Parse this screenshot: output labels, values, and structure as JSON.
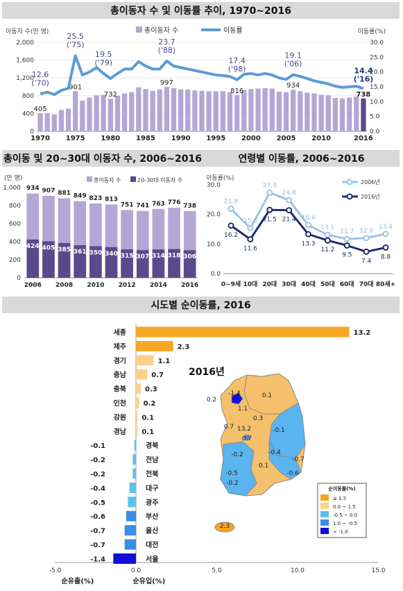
{
  "colors": {
    "banner": "#d9d9d9",
    "bar_light": "#b4a7d6",
    "bar_dark": "#5b4a8b",
    "line_blue": "#5b9bd5",
    "line_light": "#9dc3e6",
    "line_dark": "#1f2d6b",
    "pos_orange": "#f5a623",
    "pos_light": "#fcd28a",
    "neg_light": "#5bc0f0",
    "neg_mid": "#3b8de8",
    "neg_dark": "#1010d8"
  },
  "top": {
    "title": "총이동자 수 및 이동률 추이, 1970~2016",
    "left_axis_label": "이동자 수(만 명)",
    "right_axis_label": "이동률(%)",
    "legend_bar": "총이동자 수",
    "legend_line": "이동률"
  },
  "mid_left": {
    "title": "총이동 및 20~30대 이동자 수, 2006~2016",
    "unit": "(만 명)",
    "legend_total": "총이동자 수",
    "legend_2030": "20-30대 이동자 수"
  },
  "mid_right": {
    "title": "연령별 이동률, 2006~2016",
    "unit": "이동률(%)",
    "legend_2006": "2006년",
    "legend_2016": "2016년"
  },
  "bottom": {
    "title": "시도별 순이동률, 2016",
    "xlabel_out": "순유출(%)",
    "xlabel_in": "순유입(%)",
    "map_title": "2016년",
    "map_legend_title": "순이동률(%)",
    "map_legend_items": [
      "≥ 1.5",
      "0.0 ~ 1.5",
      "-0.5 ~ 0.0",
      "1.0 ~ -0.5",
      "< -1.0"
    ],
    "map_labels": [
      {
        "text": "-1.4"
      },
      {
        "text": "0.2"
      },
      {
        "text": "1.1"
      },
      {
        "text": "0.1"
      },
      {
        "text": "0.3"
      },
      {
        "text": "0.7"
      },
      {
        "text": "13.2"
      },
      {
        "text": "0.7"
      },
      {
        "text": "-0.1"
      },
      {
        "text": "-0.2"
      },
      {
        "text": "-0.4"
      },
      {
        "text": "-0.7"
      },
      {
        "text": "0.1"
      },
      {
        "text": "-0.5"
      },
      {
        "text": "-0.6"
      },
      {
        "text": "-0.2"
      },
      {
        "text": "2.3"
      }
    ]
  },
  "chart_data": [
    {
      "type": "bar+line",
      "title": "총이동자 수 및 이동률 추이, 1970~2016",
      "x": [
        1970,
        1971,
        1972,
        1973,
        1974,
        1975,
        1976,
        1977,
        1978,
        1979,
        1980,
        1981,
        1982,
        1983,
        1984,
        1985,
        1986,
        1987,
        1988,
        1989,
        1990,
        1991,
        1992,
        1993,
        1994,
        1995,
        1996,
        1997,
        1998,
        1999,
        2000,
        2001,
        2002,
        2003,
        2004,
        2005,
        2006,
        2007,
        2008,
        2009,
        2010,
        2011,
        2012,
        2013,
        2014,
        2015,
        2016
      ],
      "x_ticks": [
        "1970",
        "1975",
        "1980",
        "1985",
        "1990",
        "1995",
        "2000",
        "2005",
        "2010",
        "2016"
      ],
      "series": [
        {
          "name": "총이동자 수",
          "axis": "left",
          "values": [
            405,
            410,
            380,
            480,
            510,
            901,
            690,
            760,
            810,
            820,
            732,
            800,
            850,
            880,
            990,
            950,
            910,
            940,
            997,
            970,
            940,
            940,
            920,
            910,
            900,
            900,
            900,
            880,
            816,
            930,
            950,
            960,
            970,
            960,
            890,
            880,
            934,
            900,
            870,
            850,
            820,
            810,
            750,
            740,
            760,
            780,
            738
          ]
        },
        {
          "name": "이동률",
          "axis": "right",
          "values": [
            12.6,
            13.2,
            12.4,
            13.8,
            14.5,
            25.5,
            19.0,
            20.0,
            21.5,
            19.5,
            17.8,
            19.5,
            21.0,
            21.0,
            23.5,
            22.0,
            21.0,
            21.0,
            23.7,
            22.0,
            21.5,
            21.0,
            20.5,
            20.0,
            19.5,
            19.0,
            18.8,
            18.5,
            17.4,
            19.2,
            19.5,
            19.0,
            19.5,
            19.0,
            18.0,
            17.5,
            19.1,
            18.5,
            17.8,
            17.0,
            16.5,
            16.0,
            15.2,
            14.8,
            15.0,
            15.2,
            14.4
          ]
        }
      ],
      "left_ylim": [
        0,
        2000
      ],
      "left_ticks": [
        "0",
        "400",
        "800",
        "1,200",
        "1,600",
        "2,000"
      ],
      "right_ylim": [
        0,
        30
      ],
      "right_ticks": [
        "0.0",
        "5.0",
        "10.0",
        "15.0",
        "20.0",
        "25.0",
        "30.0"
      ],
      "bar_labels": [
        {
          "idx": 0,
          "text": "405"
        },
        {
          "idx": 5,
          "text": "901"
        },
        {
          "idx": 10,
          "text": "732"
        },
        {
          "idx": 18,
          "text": "997"
        },
        {
          "idx": 28,
          "text": "816"
        },
        {
          "idx": 36,
          "text": "934"
        },
        {
          "idx": 46,
          "text": "738"
        }
      ],
      "line_labels": [
        {
          "idx": 0,
          "text": "12.6",
          "sub": "('70)"
        },
        {
          "idx": 5,
          "text": "25.5",
          "sub": "('75)"
        },
        {
          "idx": 9,
          "text": "19.5",
          "sub": "('79)"
        },
        {
          "idx": 18,
          "text": "23.7",
          "sub": "('88)"
        },
        {
          "idx": 28,
          "text": "17.4",
          "sub": "('98)"
        },
        {
          "idx": 36,
          "text": "19.1",
          "sub": "('06)"
        },
        {
          "idx": 46,
          "text": "14.4",
          "sub": "('16)"
        }
      ]
    },
    {
      "type": "bar",
      "title": "총이동 및 20~30대 이동자 수, 2006~2016",
      "categories": [
        "2006",
        "2007",
        "2008",
        "2009",
        "2010",
        "2011",
        "2012",
        "2013",
        "2014",
        "2015",
        "2016"
      ],
      "x_ticks": [
        "2006",
        "2008",
        "2010",
        "2012",
        "2014",
        "2016"
      ],
      "series": [
        {
          "name": "총이동자 수",
          "values": [
            934,
            907,
            881,
            849,
            823,
            813,
            751,
            741,
            763,
            776,
            738
          ]
        },
        {
          "name": "20-30대 이동자 수",
          "values": [
            424,
            405,
            385,
            361,
            350,
            340,
            315,
            307,
            314,
            318,
            306
          ]
        }
      ],
      "ylim": [
        0,
        1000
      ],
      "ticks": [
        "0",
        "200",
        "400",
        "600",
        "800",
        "1,000"
      ]
    },
    {
      "type": "line",
      "title": "연령별 이동률, 2006~2016",
      "categories": [
        "0~9세",
        "10대",
        "20대",
        "30대",
        "40대",
        "50대",
        "60대",
        "70대",
        "80세+"
      ],
      "series": [
        {
          "name": "2006년",
          "values": [
            21.9,
            15.3,
            27.3,
            24.8,
            16.4,
            13.1,
            11.7,
            12.0,
            13.4
          ]
        },
        {
          "name": "2016년",
          "values": [
            16.2,
            11.6,
            21.5,
            21.4,
            13.3,
            11.2,
            9.5,
            7.4,
            8.8
          ]
        }
      ],
      "ylim": [
        0,
        30
      ],
      "ticks": [
        "0.0",
        "10.0",
        "20.0",
        "30.0"
      ]
    },
    {
      "type": "bar",
      "orientation": "horizontal",
      "title": "시도별 순이동률, 2016",
      "categories": [
        "세종",
        "제주",
        "경기",
        "충남",
        "충북",
        "인천",
        "강원",
        "경남",
        "경북",
        "전남",
        "전북",
        "대구",
        "광주",
        "부산",
        "울산",
        "대전",
        "서울"
      ],
      "values": [
        13.2,
        2.3,
        1.1,
        0.7,
        0.3,
        0.2,
        0.1,
        0.1,
        -0.1,
        -0.2,
        -0.2,
        -0.4,
        -0.5,
        -0.6,
        -0.7,
        -0.7,
        -1.4
      ],
      "value_labels": [
        "13.2",
        "2.3",
        "1.1",
        "0.7",
        "0.3",
        "0.2",
        "0.1",
        "0.1",
        "-0.1",
        "-0.2",
        "-0.2",
        "-0.4",
        "-0.5",
        "-0.6",
        "-0.7",
        "-0.7",
        "-1.4"
      ],
      "xlim": [
        -5,
        15
      ],
      "ticks": [
        "-5.0",
        "0.0",
        "5.0",
        "10.0",
        "15.0"
      ]
    }
  ]
}
